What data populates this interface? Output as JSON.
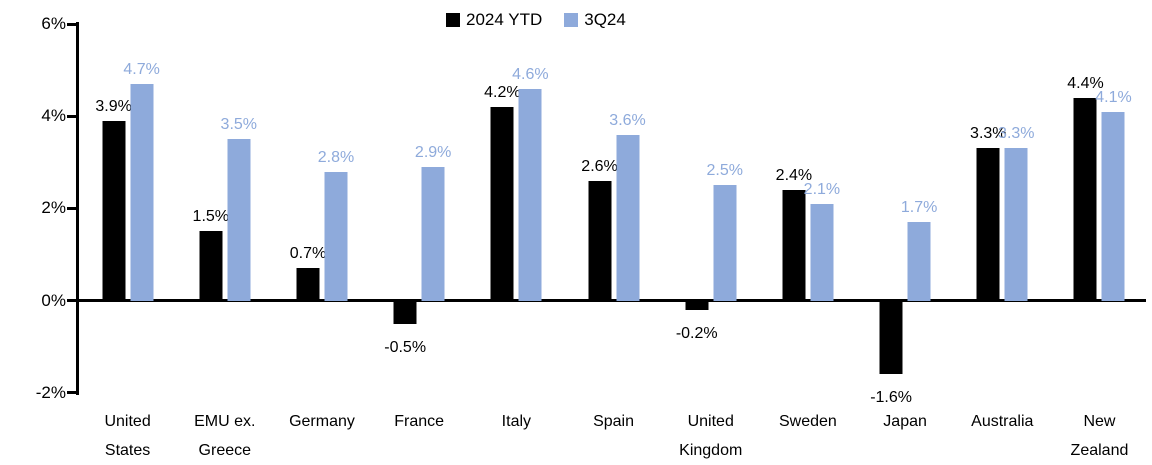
{
  "chart_data": {
    "type": "bar",
    "title": "",
    "categories": [
      "United\nStates",
      "EMU ex.\nGreece",
      "Germany",
      "France",
      "Italy",
      "Spain",
      "United\nKingdom",
      "Sweden",
      "Japan",
      "Australia",
      "New\nZealand"
    ],
    "series": [
      {
        "name": "2024 YTD",
        "color": "#000000",
        "values": [
          3.9,
          1.5,
          0.7,
          -0.5,
          4.2,
          2.6,
          -0.2,
          2.4,
          -1.6,
          3.3,
          4.4
        ]
      },
      {
        "name": "3Q24",
        "color": "#8EAADB",
        "values": [
          4.7,
          3.5,
          2.8,
          2.9,
          4.6,
          3.6,
          2.5,
          2.1,
          1.7,
          3.3,
          4.1
        ]
      }
    ],
    "ylim": [
      -2,
      6
    ],
    "yticks": [
      6,
      4,
      2,
      0,
      -2
    ],
    "ytick_suffix": "%",
    "value_label_suffix": "%",
    "value_label_decimals": 1,
    "legend_position": "top-center",
    "grid": false,
    "colors": {
      "axis": "#000000",
      "background": "#ffffff"
    }
  }
}
